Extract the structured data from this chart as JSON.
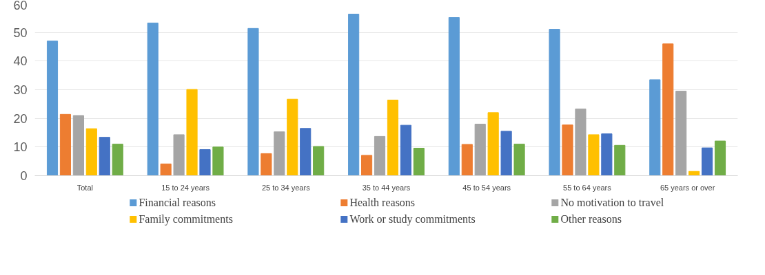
{
  "chart_data": {
    "type": "bar",
    "categories": [
      "Total",
      "15 to 24 years",
      "25 to 34 years",
      "35 to 44 years",
      "45 to 54 years",
      "55 to 64 years",
      "65 years or over"
    ],
    "series": [
      {
        "name": "Financial reasons",
        "color": "#5b9bd5",
        "values": [
          47,
          53.3,
          51.4,
          56.4,
          55.2,
          51.1,
          33.5
        ]
      },
      {
        "name": "Health reasons",
        "color": "#ed7d31",
        "values": [
          21.4,
          4.1,
          7.7,
          7.1,
          10.9,
          17.7,
          46
        ]
      },
      {
        "name": "No motivation to travel",
        "color": "#a5a5a5",
        "values": [
          21,
          14.3,
          15.3,
          13.7,
          18,
          23.3,
          29.5
        ]
      },
      {
        "name": "Family commitments",
        "color": "#ffc000",
        "values": [
          16.4,
          30.1,
          26.7,
          26.4,
          22,
          14.3,
          1.5
        ]
      },
      {
        "name": "Work or study commitments",
        "color": "#4472c4",
        "values": [
          13.4,
          9.1,
          16.5,
          17.6,
          15.5,
          14.6,
          9.7
        ]
      },
      {
        "name": "Other reasons",
        "color": "#70ad47",
        "values": [
          11,
          10,
          10.2,
          9.6,
          11,
          10.6,
          12.1
        ]
      }
    ],
    "ylim": [
      0,
      60
    ],
    "yticks": [
      0,
      10,
      20,
      30,
      40,
      50,
      60
    ],
    "grid": "y",
    "legend": "bottom"
  }
}
